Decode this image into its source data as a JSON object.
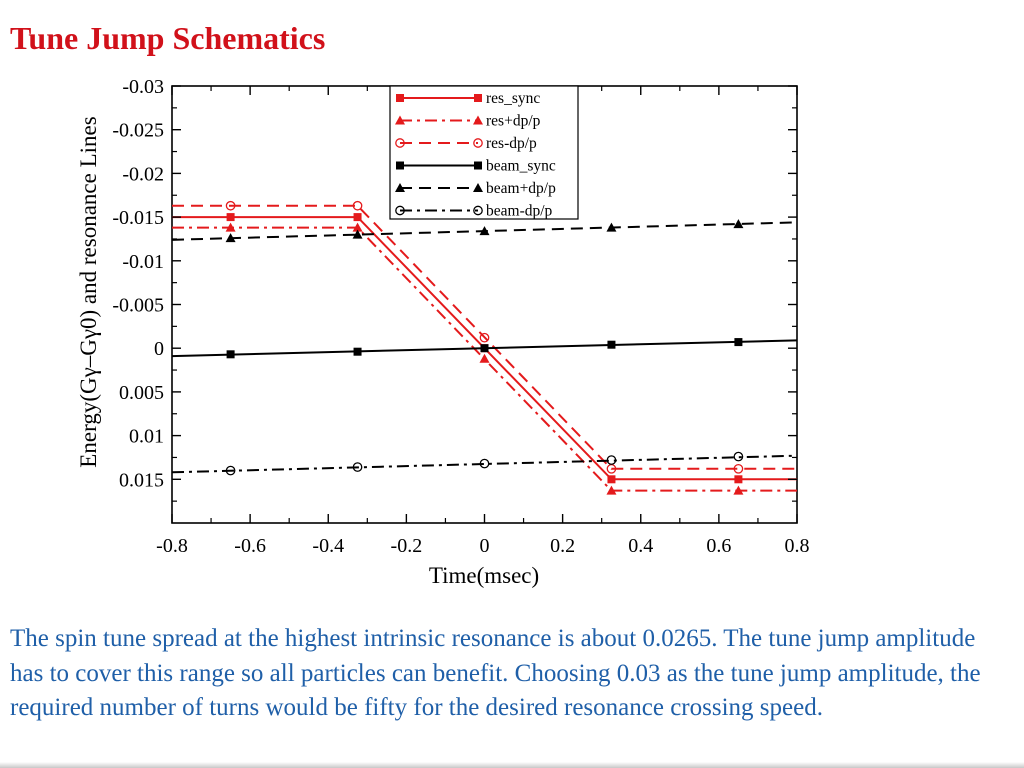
{
  "slide": {
    "title": "Tune Jump Schematics",
    "caption": "The spin tune spread at the highest intrinsic resonance is about 0.0265.  The tune jump amplitude has to cover this range so all particles can benefit. Choosing 0.03 as the tune jump amplitude, the required number of turns would be fifty for the desired resonance crossing speed."
  },
  "colors": {
    "title": "#d1111a",
    "caption": "#1f5fa8",
    "res": "#e41a1c",
    "beam": "#000000"
  },
  "chart_data": {
    "type": "line",
    "title": "",
    "xlabel": "Time(msec)",
    "ylabel": "Energy(Gγ–Gγ0) and resonance Lines",
    "xlim": [
      -0.8,
      0.8
    ],
    "ylim": [
      -0.03,
      0.02
    ],
    "y_axis_inverted": true,
    "x_ticks": [
      -0.8,
      -0.6,
      -0.4,
      -0.2,
      0,
      0.2,
      0.4,
      0.6,
      0.8
    ],
    "x_tick_labels": [
      "-0.8",
      "-0.6",
      "-0.4",
      "-0.2",
      "0",
      "0.2",
      "0.4",
      "0.6",
      "0.8"
    ],
    "y_ticks": [
      -0.03,
      -0.025,
      -0.02,
      -0.015,
      -0.01,
      -0.005,
      0,
      0.005,
      0.01,
      0.015
    ],
    "y_tick_labels": [
      "-0.03",
      "-0.025",
      "-0.02",
      "-0.015",
      "-0.01",
      "-0.005",
      "0",
      "0.005",
      "0.01",
      "0.015"
    ],
    "grid": false,
    "legend_position": "top-center",
    "series": [
      {
        "name": "res_sync",
        "color": "#e41a1c",
        "dash": "solid",
        "marker": "square-filled",
        "x": [
          -0.8,
          -0.325,
          0.325,
          0.8
        ],
        "y": [
          -0.015,
          -0.015,
          0.015,
          0.015
        ],
        "marker_x": [
          -0.65,
          -0.325,
          0,
          0.325,
          0.65
        ],
        "marker_y": [
          -0.015,
          -0.015,
          0,
          0.015,
          0.015
        ]
      },
      {
        "name": "res+dp/p",
        "color": "#e41a1c",
        "dash": "dashdot",
        "marker": "triangle-filled",
        "x": [
          -0.8,
          -0.325,
          0.325,
          0.8
        ],
        "y": [
          -0.0138,
          -0.0138,
          0.0163,
          0.0163
        ],
        "marker_x": [
          -0.65,
          -0.325,
          0,
          0.325,
          0.65
        ],
        "marker_y": [
          -0.0138,
          -0.0138,
          0.0012,
          0.0163,
          0.0163
        ]
      },
      {
        "name": "res-dp/p",
        "color": "#e41a1c",
        "dash": "dashed",
        "marker": "circle-open",
        "x": [
          -0.8,
          -0.325,
          0.325,
          0.8
        ],
        "y": [
          -0.0163,
          -0.0163,
          0.0138,
          0.0138
        ],
        "marker_x": [
          -0.65,
          -0.325,
          0,
          0.325,
          0.65
        ],
        "marker_y": [
          -0.0163,
          -0.0163,
          -0.0012,
          0.0138,
          0.0138
        ]
      },
      {
        "name": "beam_sync",
        "color": "#000000",
        "dash": "solid",
        "marker": "square-filled",
        "x": [
          -0.8,
          0.8
        ],
        "y": [
          0.0009,
          -0.0009
        ],
        "marker_x": [
          -0.65,
          -0.325,
          0,
          0.325,
          0.65
        ],
        "marker_y": [
          0.0007,
          0.0004,
          0,
          -0.0004,
          -0.0007
        ]
      },
      {
        "name": "beam+dp/p",
        "color": "#000000",
        "dash": "dashed",
        "marker": "triangle-filled",
        "x": [
          -0.8,
          0.8
        ],
        "y": [
          -0.0124,
          -0.0144
        ],
        "marker_x": [
          -0.65,
          -0.325,
          0,
          0.325,
          0.65
        ],
        "marker_y": [
          -0.0126,
          -0.013,
          -0.0134,
          -0.0138,
          -0.0142
        ]
      },
      {
        "name": "beam-dp/p",
        "color": "#000000",
        "dash": "dashdot",
        "marker": "circle-open",
        "x": [
          -0.8,
          0.8
        ],
        "y": [
          0.0142,
          0.0123
        ],
        "marker_x": [
          -0.65,
          -0.325,
          0,
          0.325,
          0.65
        ],
        "marker_y": [
          0.014,
          0.0136,
          0.0132,
          0.0128,
          0.0124
        ]
      }
    ]
  }
}
